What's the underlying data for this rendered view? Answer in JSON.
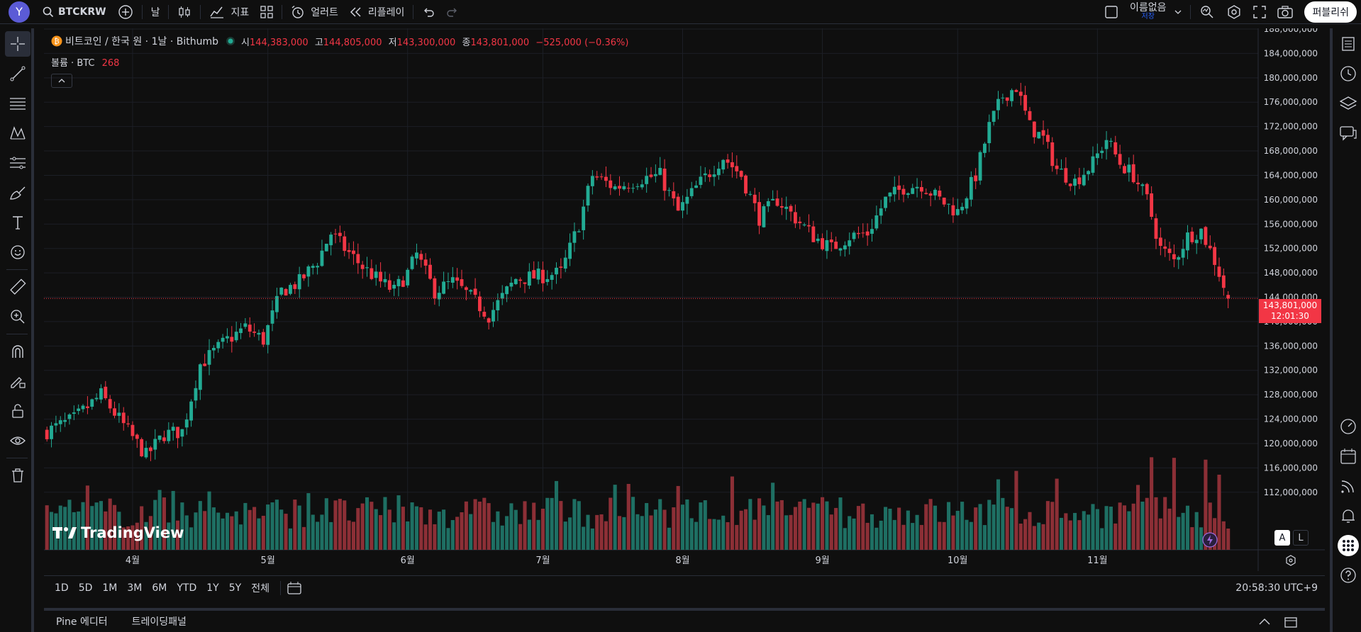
{
  "topbar": {
    "avatar_letter": "Y",
    "symbol": "BTCKRW",
    "interval": "날",
    "indicators_label": "지표",
    "alert_label": "얼러트",
    "replay_label": "리플레이",
    "layout_name": "이름없음",
    "layout_status": "저장",
    "publish_label": "퍼블리쉬"
  },
  "legend": {
    "title": "비트코인 / 한국 원 · 1날 · Bithumb",
    "open_label": "시",
    "open": "144,383,000",
    "high_label": "고",
    "high": "144,805,000",
    "low_label": "저",
    "low": "143,300,000",
    "close_label": "종",
    "close": "143,801,000",
    "change": "−525,000 (−0.36%)",
    "volume_label": "볼륨 · BTC",
    "volume_value": "268"
  },
  "price_axis": {
    "labels": [
      "188,000,000",
      "184,000,000",
      "180,000,000",
      "176,000,000",
      "172,000,000",
      "168,000,000",
      "164,000,000",
      "160,000,000",
      "156,000,000",
      "152,000,000",
      "148,000,000",
      "144,000,000",
      "140,000,000",
      "136,000,000",
      "132,000,000",
      "128,000,000",
      "124,000,000",
      "120,000,000",
      "116,000,000",
      "112,000,000"
    ],
    "current_price": "143,801,000",
    "countdown": "12:01:30"
  },
  "time_axis": {
    "labels": [
      "4월",
      "5월",
      "6월",
      "7월",
      "8월",
      "9월",
      "10월",
      "11월"
    ]
  },
  "watermark": "TradingView",
  "scale_buttons": {
    "auto": "A",
    "log": "L"
  },
  "bottombar": {
    "ranges": [
      "1D",
      "5D",
      "1M",
      "3M",
      "6M",
      "YTD",
      "1Y",
      "5Y",
      "전체"
    ],
    "clock": "20:58:30 UTC+9"
  },
  "panels": {
    "pine": "Pine 에디터",
    "trading": "트레이딩패널"
  },
  "colors": {
    "up": "#22ab94",
    "down": "#f23645",
    "up_vol": "#1e6f63",
    "down_vol": "#8c2f36",
    "bg": "#0f0f0f"
  },
  "chart_data": {
    "type": "candlestick",
    "title": "비트코인 / 한국 원 · 1날 · Bithumb",
    "ylim": [
      110000000,
      188000000
    ],
    "x_ticks": [
      "4월",
      "5월",
      "6월",
      "7월",
      "8월",
      "9월",
      "10월",
      "11월"
    ],
    "close_path": [
      [
        0,
        122000000
      ],
      [
        6,
        124000000
      ],
      [
        12,
        128000000
      ],
      [
        16,
        124000000
      ],
      [
        22,
        118000000
      ],
      [
        26,
        121500000
      ],
      [
        30,
        122000000
      ],
      [
        34,
        133000000
      ],
      [
        40,
        137000000
      ],
      [
        44,
        139000000
      ],
      [
        48,
        137000000
      ],
      [
        52,
        145000000
      ],
      [
        56,
        146500000
      ],
      [
        60,
        150000000
      ],
      [
        63,
        154500000
      ],
      [
        66,
        152000000
      ],
      [
        70,
        149000000
      ],
      [
        74,
        146500000
      ],
      [
        77,
        145000000
      ],
      [
        80,
        148000000
      ],
      [
        82,
        151000000
      ],
      [
        86,
        145000000
      ],
      [
        90,
        146500000
      ],
      [
        94,
        144000000
      ],
      [
        98,
        141000000
      ],
      [
        104,
        147000000
      ],
      [
        110,
        147500000
      ],
      [
        114,
        148000000
      ],
      [
        118,
        156000000
      ],
      [
        121,
        164000000
      ],
      [
        126,
        162000000
      ],
      [
        132,
        163500000
      ],
      [
        136,
        164000000
      ],
      [
        140,
        158000000
      ],
      [
        144,
        162000000
      ],
      [
        150,
        167000000
      ],
      [
        154,
        164000000
      ],
      [
        158,
        157000000
      ],
      [
        162,
        160000000
      ],
      [
        166,
        157000000
      ],
      [
        170,
        154000000
      ],
      [
        174,
        152000000
      ],
      [
        178,
        154000000
      ],
      [
        182,
        154500000
      ],
      [
        186,
        160000000
      ],
      [
        190,
        162000000
      ],
      [
        194,
        162500000
      ],
      [
        198,
        160000000
      ],
      [
        202,
        158000000
      ],
      [
        206,
        164000000
      ],
      [
        209,
        172000000
      ],
      [
        212,
        177000000
      ],
      [
        215,
        178500000
      ],
      [
        218,
        172000000
      ],
      [
        221,
        170000000
      ],
      [
        224,
        165000000
      ],
      [
        228,
        163000000
      ],
      [
        232,
        166000000
      ],
      [
        235,
        170000000
      ],
      [
        238,
        166000000
      ],
      [
        241,
        164000000
      ],
      [
        244,
        160000000
      ],
      [
        247,
        152000000
      ],
      [
        250,
        150000000
      ],
      [
        253,
        154000000
      ],
      [
        256,
        155000000
      ],
      [
        259,
        150000000
      ],
      [
        262,
        143801000
      ]
    ],
    "volume_scale_note": "relative",
    "last_close": 143801000
  }
}
